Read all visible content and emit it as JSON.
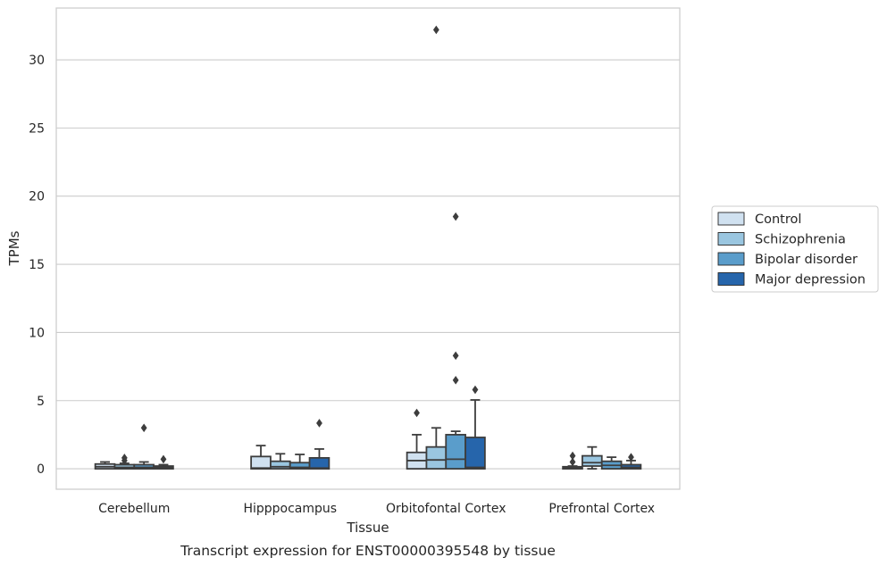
{
  "chart_data": {
    "type": "box",
    "caption": "Transcript expression for ENST00000395548 by tissue",
    "xlabel": "Tissue",
    "ylabel": "TPMs",
    "ylim": [
      -1.5,
      33.8
    ],
    "yticks": [
      0,
      5,
      10,
      15,
      20,
      25,
      30
    ],
    "grid": true,
    "legend_position": "right",
    "categories": [
      "Cerebellum",
      "Hipppocampus",
      "Orbitofontal Cortex",
      "Prefrontal Cortex"
    ],
    "series": [
      {
        "name": "Control",
        "color": "#d0e1f0",
        "boxes": [
          {
            "q1": 0.0,
            "median": 0.15,
            "q3": 0.35,
            "whisker_low": 0.0,
            "whisker_high": 0.5,
            "outliers": []
          },
          {
            "q1": 0.0,
            "median": 0.05,
            "q3": 0.9,
            "whisker_low": 0.0,
            "whisker_high": 1.7,
            "outliers": []
          },
          {
            "q1": 0.0,
            "median": 0.6,
            "q3": 1.2,
            "whisker_low": 0.0,
            "whisker_high": 2.5,
            "outliers": [
              4.1
            ]
          },
          {
            "q1": 0.0,
            "median": 0.05,
            "q3": 0.15,
            "whisker_low": 0.0,
            "whisker_high": 0.2,
            "outliers": [
              0.5,
              0.95
            ]
          }
        ]
      },
      {
        "name": "Schizophrenia",
        "color": "#9ac6e0",
        "boxes": [
          {
            "q1": 0.0,
            "median": 0.1,
            "q3": 0.3,
            "whisker_low": 0.0,
            "whisker_high": 0.4,
            "outliers": [
              0.6,
              0.8
            ]
          },
          {
            "q1": 0.0,
            "median": 0.15,
            "q3": 0.55,
            "whisker_low": 0.0,
            "whisker_high": 1.1,
            "outliers": []
          },
          {
            "q1": 0.0,
            "median": 0.65,
            "q3": 1.6,
            "whisker_low": 0.0,
            "whisker_high": 3.0,
            "outliers": [
              32.2
            ]
          },
          {
            "q1": 0.2,
            "median": 0.45,
            "q3": 0.95,
            "whisker_low": 0.0,
            "whisker_high": 1.6,
            "outliers": []
          }
        ]
      },
      {
        "name": "Bipolar disorder",
        "color": "#5a9dcb",
        "boxes": [
          {
            "q1": 0.0,
            "median": 0.1,
            "q3": 0.3,
            "whisker_low": 0.0,
            "whisker_high": 0.5,
            "outliers": [
              3.0
            ]
          },
          {
            "q1": 0.0,
            "median": 0.1,
            "q3": 0.45,
            "whisker_low": 0.0,
            "whisker_high": 1.05,
            "outliers": []
          },
          {
            "q1": 0.0,
            "median": 0.7,
            "q3": 2.5,
            "whisker_low": 0.0,
            "whisker_high": 2.75,
            "outliers": [
              6.5,
              8.3,
              18.5
            ]
          },
          {
            "q1": 0.0,
            "median": 0.25,
            "q3": 0.55,
            "whisker_low": 0.0,
            "whisker_high": 0.85,
            "outliers": []
          }
        ]
      },
      {
        "name": "Major depression",
        "color": "#2665ab",
        "boxes": [
          {
            "q1": 0.0,
            "median": 0.1,
            "q3": 0.2,
            "whisker_low": 0.0,
            "whisker_high": 0.3,
            "outliers": [
              0.7
            ]
          },
          {
            "q1": 0.0,
            "median": 0.05,
            "q3": 0.8,
            "whisker_low": 0.0,
            "whisker_high": 1.45,
            "outliers": [
              3.35
            ]
          },
          {
            "q1": 0.0,
            "median": 0.1,
            "q3": 2.3,
            "whisker_low": 0.0,
            "whisker_high": 5.05,
            "outliers": [
              5.8
            ]
          },
          {
            "q1": 0.0,
            "median": 0.1,
            "q3": 0.3,
            "whisker_low": 0.0,
            "whisker_high": 0.6,
            "outliers": [
              0.85
            ]
          }
        ]
      }
    ]
  }
}
